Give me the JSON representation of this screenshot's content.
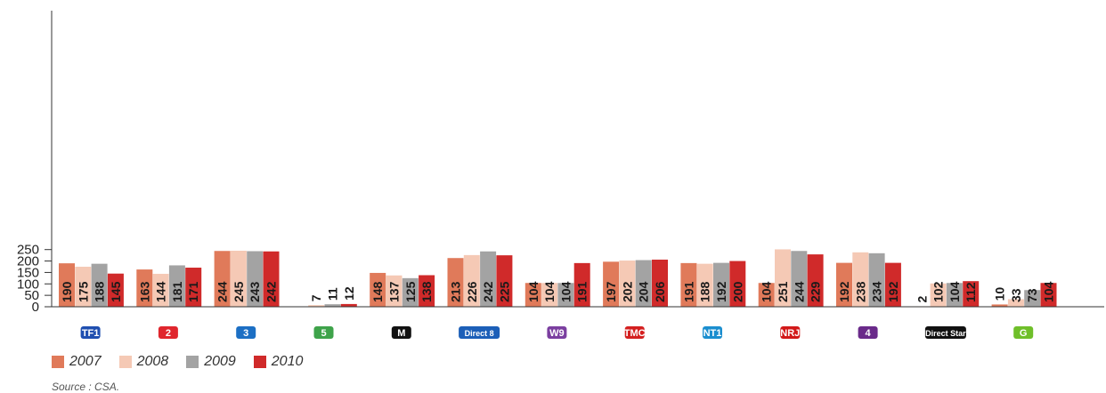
{
  "chart_data": {
    "type": "bar",
    "categories": [
      "TF1",
      "France 2",
      "France 3",
      "France 5",
      "M6",
      "Direct 8",
      "W9",
      "TMC",
      "NT1",
      "NRJ 12",
      "France 4",
      "Direct Star",
      "Gulli"
    ],
    "series": [
      {
        "name": "2007",
        "color": "#e07a5a",
        "values": [
          190,
          163,
          244,
          null,
          148,
          213,
          104,
          197,
          191,
          104,
          192,
          2,
          10
        ]
      },
      {
        "name": "2008",
        "color": "#f5c9b5",
        "values": [
          175,
          144,
          245,
          7,
          137,
          226,
          104,
          202,
          188,
          251,
          238,
          102,
          33
        ]
      },
      {
        "name": "2009",
        "color": "#a3a3a3",
        "values": [
          188,
          181,
          243,
          11,
          125,
          242,
          104,
          204,
          192,
          244,
          234,
          104,
          73
        ]
      },
      {
        "name": "2010",
        "color": "#d02a2a",
        "values": [
          145,
          171,
          242,
          12,
          138,
          225,
          191,
          206,
          200,
          229,
          192,
          112,
          104
        ]
      }
    ],
    "yticks": [
      0,
      50,
      100,
      150,
      200,
      250
    ],
    "ylim": [
      0,
      260
    ],
    "legend_position": "bottom-left",
    "grid": false,
    "source": "Source : CSA."
  },
  "logos": [
    {
      "text": "TF1",
      "color": "#1f4fb0"
    },
    {
      "text": "2",
      "color": "#e0262d"
    },
    {
      "text": "3",
      "color": "#1c6fc4"
    },
    {
      "text": "5",
      "color": "#3ea34a"
    },
    {
      "text": "M",
      "color": "#111111"
    },
    {
      "text": "Direct 8",
      "color": "#1c5fb8"
    },
    {
      "text": "W9",
      "color": "#7b3fa0"
    },
    {
      "text": "TMC",
      "color": "#d42020"
    },
    {
      "text": "NT1",
      "color": "#1b8ecf"
    },
    {
      "text": "NRJ",
      "color": "#d21919"
    },
    {
      "text": "4",
      "color": "#6a2a8a"
    },
    {
      "text": "Direct Star",
      "color": "#111111"
    },
    {
      "text": "G",
      "color": "#6fbf2a"
    }
  ]
}
